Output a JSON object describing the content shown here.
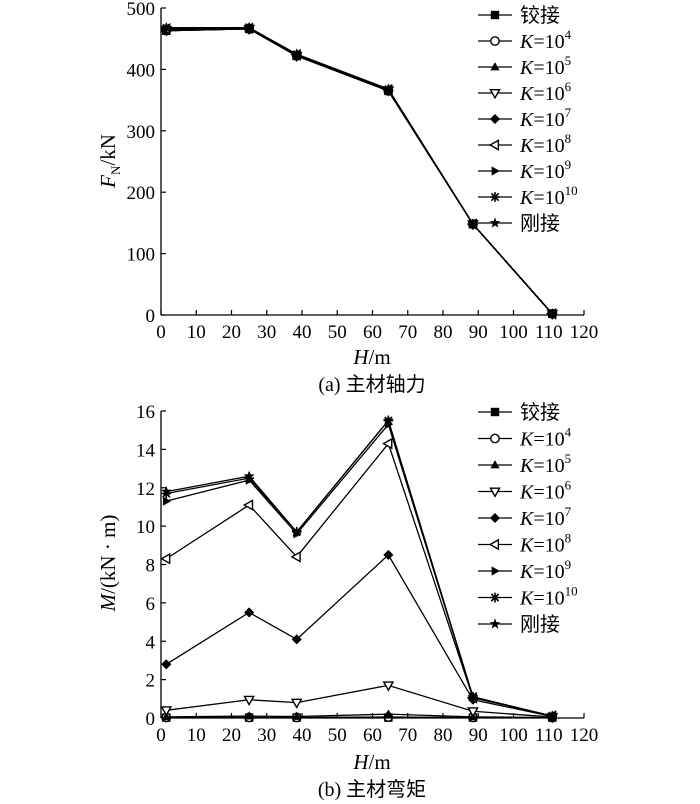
{
  "chart_data": [
    {
      "type": "line",
      "caption": "(a) 主材轴力",
      "ylabel_main": "F",
      "ylabel_sub": "N",
      "ylabel_unit": "/kN",
      "xlabel_main": "H",
      "xlabel_unit": "/m",
      "xlim": [
        0,
        120
      ],
      "ylim": [
        0,
        500
      ],
      "xticks": [
        "0",
        "10",
        "20",
        "30",
        "40",
        "50",
        "60",
        "70",
        "80",
        "90",
        "100",
        "110",
        "120"
      ],
      "yticks": [
        "0",
        "100",
        "200",
        "300",
        "400",
        "500"
      ],
      "grid": false,
      "legend_position": "top-right",
      "series": [
        {
          "name": "铰接",
          "marker": "square",
          "x": [
            1.5,
            25,
            38.5,
            64.5,
            88.5,
            111
          ],
          "y": [
            463,
            466,
            422,
            365,
            148,
            2
          ]
        },
        {
          "name_prefix": "K=10",
          "name_exp": "4",
          "marker": "circle",
          "x": [
            1.5,
            25,
            38.5,
            64.5,
            88.5,
            111
          ],
          "y": [
            463,
            466,
            422,
            365,
            148,
            2
          ]
        },
        {
          "name_prefix": "K=10",
          "name_exp": "5",
          "marker": "triangle",
          "x": [
            1.5,
            25,
            38.5,
            64.5,
            88.5,
            111
          ],
          "y": [
            463,
            466,
            422,
            365,
            148,
            2
          ]
        },
        {
          "name_prefix": "K=10",
          "name_exp": "6",
          "marker": "triangle-down",
          "x": [
            1.5,
            25,
            38.5,
            64.5,
            88.5,
            111
          ],
          "y": [
            464,
            466,
            422,
            366,
            148,
            2
          ]
        },
        {
          "name_prefix": "K=10",
          "name_exp": "7",
          "marker": "diamond",
          "x": [
            1.5,
            25,
            38.5,
            64.5,
            88.5,
            111
          ],
          "y": [
            465,
            467,
            423,
            366,
            148,
            2
          ]
        },
        {
          "name_prefix": "K=10",
          "name_exp": "8",
          "marker": "triangle-left",
          "x": [
            1.5,
            25,
            38.5,
            64.5,
            88.5,
            111
          ],
          "y": [
            466,
            467,
            424,
            367,
            148,
            2
          ]
        },
        {
          "name_prefix": "K=10",
          "name_exp": "9",
          "marker": "triangle-right",
          "x": [
            1.5,
            25,
            38.5,
            64.5,
            88.5,
            111
          ],
          "y": [
            467,
            468,
            424,
            367,
            148,
            2
          ]
        },
        {
          "name_prefix": "K=10",
          "name_exp": "10",
          "marker": "asterisk",
          "x": [
            1.5,
            25,
            38.5,
            64.5,
            88.5,
            111
          ],
          "y": [
            467,
            468,
            424,
            367,
            148,
            2
          ]
        },
        {
          "name": "刚接",
          "marker": "star",
          "x": [
            1.5,
            25,
            38.5,
            64.5,
            88.5,
            111
          ],
          "y": [
            468,
            468,
            425,
            368,
            148,
            2
          ]
        }
      ]
    },
    {
      "type": "line",
      "caption": "(b) 主材弯矩",
      "ylabel_main": "M",
      "ylabel_sub": "",
      "ylabel_unit": "/(kN · m)",
      "xlabel_main": "H",
      "xlabel_unit": "/m",
      "xlim": [
        0,
        120
      ],
      "ylim": [
        0,
        16
      ],
      "xticks": [
        "0",
        "10",
        "20",
        "30",
        "40",
        "50",
        "60",
        "70",
        "80",
        "90",
        "100",
        "110",
        "120"
      ],
      "yticks": [
        "0",
        "2",
        "4",
        "6",
        "8",
        "10",
        "12",
        "14",
        "16"
      ],
      "grid": false,
      "legend_position": "top-right",
      "series": [
        {
          "name": "铰接",
          "marker": "square",
          "x": [
            1.5,
            25,
            38.5,
            64.5,
            88.5,
            111
          ],
          "y": [
            0.02,
            0.02,
            0.02,
            0.02,
            0.02,
            0.02
          ]
        },
        {
          "name_prefix": "K=10",
          "name_exp": "4",
          "marker": "circle",
          "x": [
            1.5,
            25,
            38.5,
            64.5,
            88.5,
            111
          ],
          "y": [
            0.03,
            0.03,
            0.03,
            0.05,
            0.03,
            0.02
          ]
        },
        {
          "name_prefix": "K=10",
          "name_exp": "5",
          "marker": "triangle",
          "x": [
            1.5,
            25,
            38.5,
            64.5,
            88.5,
            111
          ],
          "y": [
            0.06,
            0.1,
            0.08,
            0.2,
            0.06,
            0.02
          ]
        },
        {
          "name_prefix": "K=10",
          "name_exp": "6",
          "marker": "triangle-down",
          "x": [
            1.5,
            25,
            38.5,
            64.5,
            88.5,
            111
          ],
          "y": [
            0.4,
            0.95,
            0.8,
            1.7,
            0.35,
            0.05
          ]
        },
        {
          "name_prefix": "K=10",
          "name_exp": "7",
          "marker": "diamond",
          "x": [
            1.5,
            25,
            38.5,
            64.5,
            88.5,
            111
          ],
          "y": [
            2.8,
            5.5,
            4.1,
            8.5,
            0.95,
            0.08
          ]
        },
        {
          "name_prefix": "K=10",
          "name_exp": "8",
          "marker": "triangle-left",
          "x": [
            1.5,
            25,
            38.5,
            64.5,
            88.5,
            111
          ],
          "y": [
            8.3,
            11.1,
            8.4,
            14.3,
            1.05,
            0.1
          ]
        },
        {
          "name_prefix": "K=10",
          "name_exp": "9",
          "marker": "triangle-right",
          "x": [
            1.5,
            25,
            38.5,
            64.5,
            88.5,
            111
          ],
          "y": [
            11.3,
            12.4,
            9.6,
            15.3,
            1.1,
            0.1
          ]
        },
        {
          "name_prefix": "K=10",
          "name_exp": "10",
          "marker": "asterisk",
          "x": [
            1.5,
            25,
            38.5,
            64.5,
            88.5,
            111
          ],
          "y": [
            11.7,
            12.5,
            9.7,
            15.5,
            1.1,
            0.1
          ]
        },
        {
          "name": "刚接",
          "marker": "star",
          "x": [
            1.5,
            25,
            38.5,
            64.5,
            88.5,
            111
          ],
          "y": [
            11.8,
            12.6,
            9.7,
            15.5,
            1.1,
            0.1
          ]
        }
      ]
    }
  ]
}
